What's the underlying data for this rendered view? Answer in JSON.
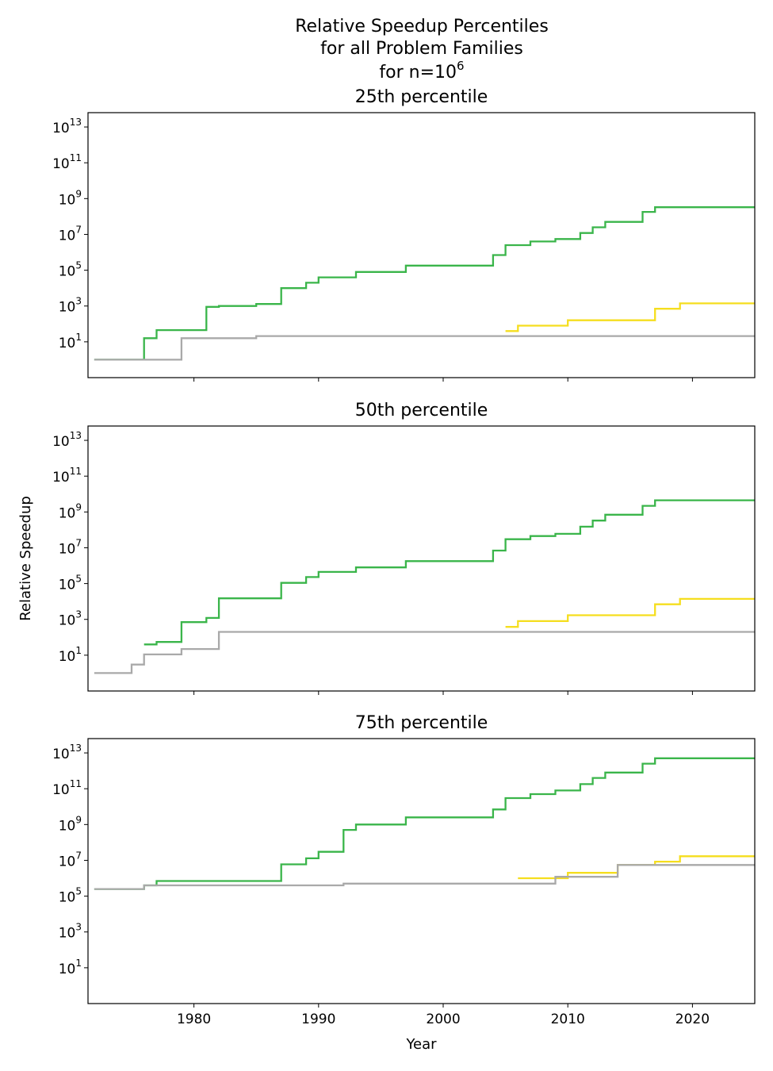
{
  "figure": {
    "title_lines": [
      "Relative Speedup Percentiles",
      "for all Problem Families"
    ],
    "title_n_prefix": "for n=10",
    "title_n_exp": "6"
  },
  "chart_data": [
    {
      "type": "line",
      "step": true,
      "title": "25th percentile",
      "xlabel": "",
      "ylabel": "",
      "xlim": [
        1971.5,
        2025
      ],
      "ylim_log10": [
        -1,
        13.8
      ],
      "yscale": "log",
      "x_ticks": [
        1980,
        1990,
        2000,
        2010,
        2020
      ],
      "x_ticklabels": [
        "",
        "",
        "",
        "",
        ""
      ],
      "y_ticks_exp": [
        1,
        3,
        5,
        7,
        9,
        11,
        13
      ],
      "y_ticklabel_base": "10",
      "series": [
        {
          "color": "#3ab54a",
          "points": [
            [
              1972,
              1.0
            ],
            [
              1976,
              16
            ],
            [
              1977,
              45
            ],
            [
              1981,
              900
            ],
            [
              1982,
              1000
            ],
            [
              1985,
              1300
            ],
            [
              1987,
              10000
            ],
            [
              1989,
              20000
            ],
            [
              1990,
              40000
            ],
            [
              1993,
              80000
            ],
            [
              1997,
              180000
            ],
            [
              2004,
              700000
            ],
            [
              2005,
              2500000
            ],
            [
              2007,
              4000000
            ],
            [
              2009,
              5500000
            ],
            [
              2011,
              12000000
            ],
            [
              2012,
              25000000
            ],
            [
              2013,
              50000000
            ],
            [
              2016,
              180000000
            ],
            [
              2017,
              330000000
            ],
            [
              2025,
              330000000
            ]
          ]
        },
        {
          "color": "#f5de1e",
          "points": [
            [
              2005,
              40
            ],
            [
              2006,
              80
            ],
            [
              2010,
              160
            ],
            [
              2017,
              700
            ],
            [
              2019,
              1400
            ],
            [
              2025,
              1400
            ]
          ]
        },
        {
          "color": "#a9a9a9",
          "points": [
            [
              1972,
              1.0
            ],
            [
              1979,
              16
            ],
            [
              1985,
              21
            ],
            [
              2025,
              21
            ]
          ]
        }
      ]
    },
    {
      "type": "line",
      "step": true,
      "title": "50th percentile",
      "xlabel": "",
      "ylabel": "Relative Speedup",
      "xlim": [
        1971.5,
        2025
      ],
      "ylim_log10": [
        -1,
        13.8
      ],
      "yscale": "log",
      "x_ticks": [
        1980,
        1990,
        2000,
        2010,
        2020
      ],
      "x_ticklabels": [
        "",
        "",
        "",
        "",
        ""
      ],
      "y_ticks_exp": [
        1,
        3,
        5,
        7,
        9,
        11,
        13
      ],
      "y_ticklabel_base": "10",
      "series": [
        {
          "color": "#3ab54a",
          "points": [
            [
              1976,
              40
            ],
            [
              1977,
              55
            ],
            [
              1979,
              700
            ],
            [
              1981,
              1200
            ],
            [
              1982,
              15000
            ],
            [
              1987,
              110000
            ],
            [
              1989,
              230000
            ],
            [
              1990,
              450000
            ],
            [
              1993,
              800000
            ],
            [
              1997,
              1800000
            ],
            [
              2004,
              7000000
            ],
            [
              2005,
              30000000
            ],
            [
              2007,
              45000000
            ],
            [
              2009,
              60000000
            ],
            [
              2011,
              150000000
            ],
            [
              2012,
              330000000
            ],
            [
              2013,
              700000000
            ],
            [
              2016,
              2200000000
            ],
            [
              2017,
              4500000000
            ],
            [
              2025,
              4500000000
            ]
          ]
        },
        {
          "color": "#f5de1e",
          "points": [
            [
              2005,
              380
            ],
            [
              2006,
              800
            ],
            [
              2010,
              1700
            ],
            [
              2017,
              7000
            ],
            [
              2019,
              14000
            ],
            [
              2025,
              14000
            ]
          ]
        },
        {
          "color": "#a9a9a9",
          "points": [
            [
              1972,
              1.0
            ],
            [
              1975,
              3
            ],
            [
              1976,
              11
            ],
            [
              1979,
              22
            ],
            [
              1982,
              200
            ],
            [
              2025,
              200
            ]
          ]
        }
      ]
    },
    {
      "type": "line",
      "step": true,
      "title": "75th percentile",
      "xlabel": "Year",
      "ylabel": "",
      "xlim": [
        1971.5,
        2025
      ],
      "ylim_log10": [
        -1,
        13.8
      ],
      "yscale": "log",
      "x_ticks": [
        1980,
        1990,
        2000,
        2010,
        2020
      ],
      "x_ticklabels": [
        "1980",
        "1990",
        "2000",
        "2010",
        "2020"
      ],
      "y_ticks_exp": [
        1,
        3,
        5,
        7,
        9,
        11,
        13
      ],
      "y_ticklabel_base": "10",
      "series": [
        {
          "color": "#3ab54a",
          "points": [
            [
              1972,
              250000
            ],
            [
              1976,
              400000
            ],
            [
              1977,
              700000
            ],
            [
              1987,
              6000000
            ],
            [
              1989,
              13000000
            ],
            [
              1990,
              30000000
            ],
            [
              1992,
              500000000
            ],
            [
              1993,
              1000000000
            ],
            [
              1997,
              2500000000
            ],
            [
              2004,
              7000000000
            ],
            [
              2005,
              30000000000
            ],
            [
              2007,
              50000000000
            ],
            [
              2009,
              80000000000
            ],
            [
              2011,
              180000000000
            ],
            [
              2012,
              400000000000
            ],
            [
              2013,
              800000000000
            ],
            [
              2016,
              2500000000000
            ],
            [
              2017,
              5000000000000
            ],
            [
              2025,
              5000000000000
            ]
          ]
        },
        {
          "color": "#f5de1e",
          "points": [
            [
              2006,
              1000000
            ],
            [
              2010,
              2000000
            ],
            [
              2014,
              5500000
            ],
            [
              2017,
              8500000
            ],
            [
              2019,
              17000000
            ],
            [
              2025,
              17000000
            ]
          ]
        },
        {
          "color": "#a9a9a9",
          "points": [
            [
              1972,
              250000
            ],
            [
              1976,
              400000
            ],
            [
              1992,
              450000
            ],
            [
              1992,
              500000
            ],
            [
              2009,
              550000
            ],
            [
              2009,
              1200000
            ],
            [
              2014,
              1200000
            ],
            [
              2014,
              5500000
            ],
            [
              2025,
              5500000
            ]
          ]
        }
      ]
    }
  ]
}
